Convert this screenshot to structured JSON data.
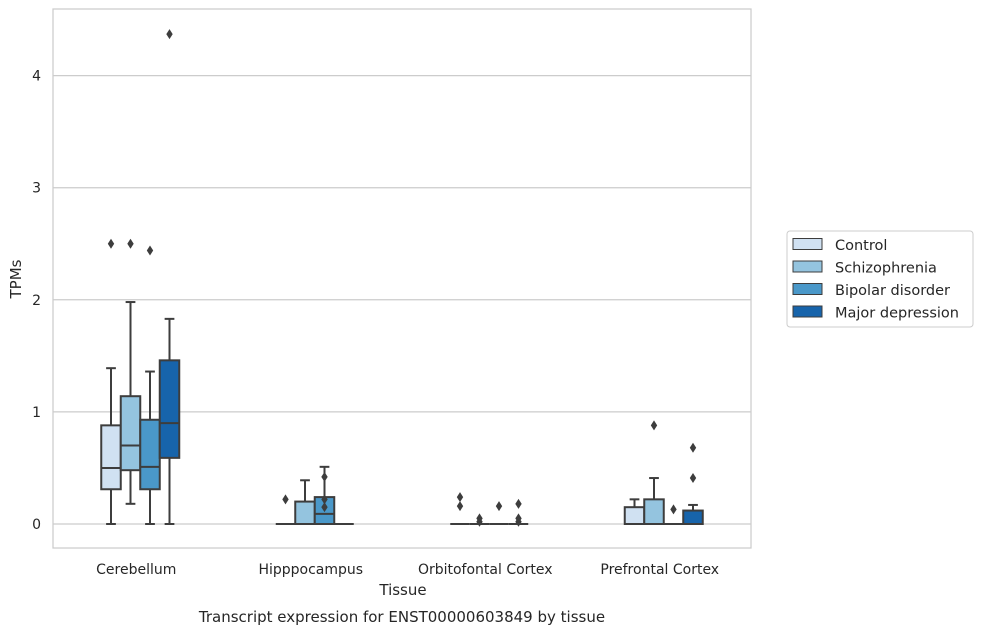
{
  "chart_data": {
    "type": "boxplot",
    "caption": "Transcript expression for ENST00000603849 by tissue",
    "xlabel": "Tissue",
    "ylabel": "TPMs",
    "ylim": [
      -0.21,
      4.6
    ],
    "yticks": [
      0,
      1,
      2,
      3,
      4
    ],
    "grid": "horizontal",
    "legend_position": "right",
    "categories": [
      "Cerebellum",
      "Hipppocampus",
      "Orbitofontal Cortex",
      "Prefrontal Cortex"
    ],
    "series": [
      {
        "name": "Control",
        "color": "#d0e1f2",
        "boxes": [
          {
            "whislo": 0.0,
            "q1": 0.31,
            "med": 0.5,
            "q3": 0.88,
            "whishi": 1.39,
            "fliers": [
              2.5
            ]
          },
          {
            "whislo": 0.0,
            "q1": 0.0,
            "med": 0.0,
            "q3": 0.0,
            "whishi": 0.0,
            "fliers": [
              0.22
            ]
          },
          {
            "whislo": 0.0,
            "q1": 0.0,
            "med": 0.0,
            "q3": 0.0,
            "whishi": 0.0,
            "fliers": [
              0.24,
              0.16
            ]
          },
          {
            "whislo": 0.0,
            "q1": 0.0,
            "med": 0.0,
            "q3": 0.15,
            "whishi": 0.22,
            "fliers": []
          }
        ]
      },
      {
        "name": "Schizophrenia",
        "color": "#94c4df",
        "boxes": [
          {
            "whislo": 0.18,
            "q1": 0.48,
            "med": 0.7,
            "q3": 1.14,
            "whishi": 1.98,
            "fliers": [
              2.5
            ]
          },
          {
            "whislo": 0.0,
            "q1": 0.0,
            "med": 0.0,
            "q3": 0.2,
            "whishi": 0.39,
            "fliers": []
          },
          {
            "whislo": 0.0,
            "q1": 0.0,
            "med": 0.0,
            "q3": 0.0,
            "whishi": 0.0,
            "fliers": [
              0.05,
              0.02
            ]
          },
          {
            "whislo": 0.0,
            "q1": 0.0,
            "med": 0.0,
            "q3": 0.22,
            "whishi": 0.41,
            "fliers": [
              0.88
            ]
          }
        ]
      },
      {
        "name": "Bipolar disorder",
        "color": "#4a98c9",
        "boxes": [
          {
            "whislo": 0.0,
            "q1": 0.31,
            "med": 0.51,
            "q3": 0.93,
            "whishi": 1.36,
            "fliers": [
              2.44
            ]
          },
          {
            "whislo": 0.0,
            "q1": 0.0,
            "med": 0.09,
            "q3": 0.24,
            "whishi": 0.51,
            "fliers": [
              0.42,
              0.22,
              0.15
            ]
          },
          {
            "whislo": 0.0,
            "q1": 0.0,
            "med": 0.0,
            "q3": 0.0,
            "whishi": 0.0,
            "fliers": [
              0.16
            ]
          },
          {
            "whislo": 0.0,
            "q1": 0.0,
            "med": 0.0,
            "q3": 0.0,
            "whishi": 0.0,
            "fliers": [
              0.13
            ]
          }
        ]
      },
      {
        "name": "Major depression",
        "color": "#1764ab",
        "boxes": [
          {
            "whislo": 0.0,
            "q1": 0.59,
            "med": 0.9,
            "q3": 1.46,
            "whishi": 1.83,
            "fliers": [
              4.37
            ]
          },
          {
            "whislo": 0.0,
            "q1": 0.0,
            "med": 0.0,
            "q3": 0.0,
            "whishi": 0.0,
            "fliers": []
          },
          {
            "whislo": 0.0,
            "q1": 0.0,
            "med": 0.0,
            "q3": 0.0,
            "whishi": 0.0,
            "fliers": [
              0.18,
              0.05,
              0.02
            ]
          },
          {
            "whislo": 0.0,
            "q1": 0.0,
            "med": 0.0,
            "q3": 0.12,
            "whishi": 0.17,
            "fliers": [
              0.68,
              0.41
            ]
          }
        ]
      }
    ]
  }
}
